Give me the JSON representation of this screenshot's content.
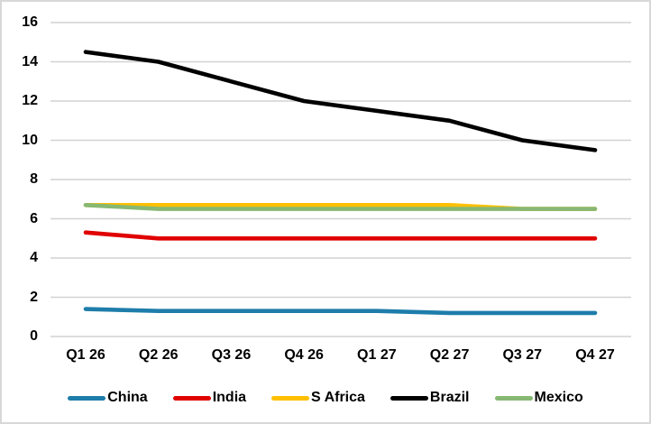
{
  "chart_data": {
    "type": "line",
    "title": "",
    "xlabel": "",
    "ylabel": "",
    "categories": [
      "Q1 26",
      "Q2 26",
      "Q3 26",
      "Q4 26",
      "Q1 27",
      "Q2 27",
      "Q3 27",
      "Q4 27"
    ],
    "series": [
      {
        "name": "China",
        "color": "#1E7DAA",
        "values": [
          1.4,
          1.3,
          1.3,
          1.3,
          1.3,
          1.2,
          1.2,
          1.2
        ]
      },
      {
        "name": "India",
        "color": "#E00000",
        "values": [
          5.3,
          5.0,
          5.0,
          5.0,
          5.0,
          5.0,
          5.0,
          5.0
        ]
      },
      {
        "name": "S Africa",
        "color": "#FFC000",
        "values": [
          6.7,
          6.7,
          6.7,
          6.7,
          6.7,
          6.7,
          6.5,
          6.5
        ]
      },
      {
        "name": "Brazil",
        "color": "#000000",
        "values": [
          14.5,
          14.0,
          13.0,
          12.0,
          11.5,
          11.0,
          10.0,
          9.5
        ]
      },
      {
        "name": "Mexico",
        "color": "#87B873",
        "values": [
          6.7,
          6.5,
          6.5,
          6.5,
          6.5,
          6.5,
          6.5,
          6.5
        ]
      }
    ],
    "ylim": [
      0,
      16
    ],
    "yticks": [
      0,
      2,
      4,
      6,
      8,
      10,
      12,
      14,
      16
    ],
    "grid": "horizontal-only",
    "legend_position": "bottom",
    "line_width": 4.6
  },
  "colors": {
    "background": "#FFFFFF",
    "frame_border": "#D8D8D8",
    "gridline": "#D2D2D2",
    "tick_text": "#000000"
  }
}
